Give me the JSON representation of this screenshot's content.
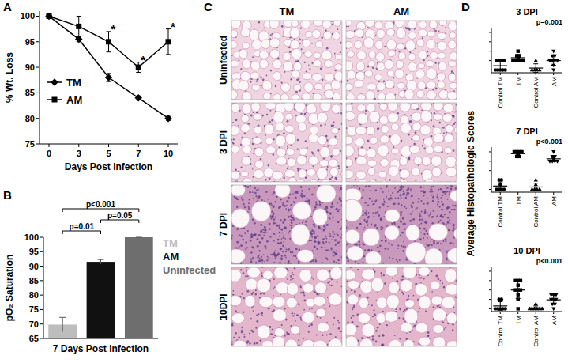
{
  "chart_data": [
    {
      "panel": "A",
      "type": "line",
      "categories": [
        "0",
        "3",
        "5",
        "7",
        "10"
      ],
      "x_label": "Days Post Infection",
      "y_label": "% Wt. Loss",
      "ylim": [
        75,
        101
      ],
      "yticks": [
        75,
        80,
        85,
        90,
        95,
        100
      ],
      "legend": "lower left",
      "series": [
        {
          "name": "TM",
          "marker": "diamond",
          "color": "#000000",
          "values": [
            100,
            95.5,
            88,
            84,
            80
          ],
          "errors": [
            0,
            0.5,
            0.8,
            0.4,
            0.4
          ]
        },
        {
          "name": "AM",
          "marker": "square",
          "color": "#000000",
          "values": [
            100,
            98,
            95,
            90,
            95
          ],
          "errors": [
            0,
            2,
            2,
            1,
            2.5
          ]
        }
      ],
      "annotations": [
        {
          "category": "5",
          "text": "*"
        },
        {
          "category": "7",
          "text": "*"
        },
        {
          "category": "10",
          "text": "*"
        }
      ]
    },
    {
      "panel": "B",
      "type": "bar",
      "categories": [
        "TM",
        "AM",
        "Uninfected"
      ],
      "values": [
        69.8,
        91.5,
        100
      ],
      "errors": [
        2.5,
        0.8,
        0
      ],
      "colors": [
        "#bdbdbd",
        "#111111",
        "#6e6e6e"
      ],
      "x_label": "7 Days Post Infection",
      "y_label": "pO₂ Saturation",
      "ylim": [
        65,
        100
      ],
      "yticks": [
        65,
        70,
        75,
        80,
        85,
        90,
        95,
        100
      ],
      "tick_labels": "y",
      "legend": "right",
      "comparisons": [
        {
          "from": "TM",
          "to": "Uninfected",
          "text": "p<0.001"
        },
        {
          "from": "AM",
          "to": "Uninfected",
          "text": "p=0.05"
        },
        {
          "from": "TM",
          "to": "AM",
          "text": "p=0.01"
        }
      ]
    },
    {
      "panel": "D",
      "type": "scatter",
      "y_label": "Average Histopathologic Scores",
      "categories": [
        "Control TM",
        "TM",
        "Control AM",
        "AM"
      ],
      "ylim": [
        -0.3,
        4.5
      ],
      "yticks": [
        0,
        1,
        2,
        3,
        4
      ],
      "tick_labels": "x",
      "plots": [
        {
          "title": "3 DPI",
          "p_value": "p=0.001",
          "series": [
            {
              "marker": "circle",
              "values": [
                0,
                0,
                0,
                0,
                0,
                1,
                1,
                1,
                1
              ],
              "mean": 0.45,
              "sd": 0.5
            },
            {
              "marker": "square",
              "values": [
                1,
                1,
                1,
                1,
                1,
                1.3,
                1.5,
                1.5,
                2
              ],
              "mean": 1.3,
              "sd": 0.35
            },
            {
              "marker": "triangle",
              "values": [
                0,
                0,
                0,
                0,
                1
              ],
              "mean": 0.2,
              "sd": 0.45
            },
            {
              "marker": "triangle-down",
              "values": [
                0,
                0.5,
                1,
                1,
                1,
                1,
                1.5,
                1.5,
                2
              ],
              "mean": 1.0,
              "sd": 0.5
            }
          ]
        },
        {
          "title": "7 DPI",
          "p_value": "p<0.001",
          "series": [
            {
              "marker": "circle",
              "values": [
                0,
                0,
                0,
                0,
                0.5,
                1,
                1
              ],
              "mean": 0.35,
              "sd": 0.45
            },
            {
              "marker": "square",
              "values": [
                3.5,
                3.5,
                3.7,
                3.8,
                4,
                4,
                4,
                4
              ],
              "mean": 3.8,
              "sd": 0.25
            },
            {
              "marker": "triangle",
              "values": [
                0,
                0,
                0,
                0,
                0.5,
                1
              ],
              "mean": 0.25,
              "sd": 0.4
            },
            {
              "marker": "triangle-down",
              "values": [
                3,
                3,
                3,
                3,
                3.2,
                3.3,
                3.5,
                3.5,
                4
              ],
              "mean": 3.25,
              "sd": 0.3
            }
          ]
        },
        {
          "title": "10 DPI",
          "p_value": "p<0.001",
          "series": [
            {
              "marker": "circle",
              "values": [
                0,
                0,
                0,
                0,
                0,
                1,
                1
              ],
              "mean": 0.3,
              "sd": 0.45
            },
            {
              "marker": "square",
              "values": [
                0,
                1,
                1.5,
                2,
                2,
                2,
                2.5,
                3,
                3,
                3
              ],
              "mean": 2.0,
              "sd": 0.9
            },
            {
              "marker": "triangle",
              "values": [
                0,
                0,
                0,
                0,
                0,
                0,
                0.5
              ],
              "mean": 0.1,
              "sd": 0.2
            },
            {
              "marker": "triangle-down",
              "values": [
                0,
                0.5,
                0.5,
                1,
                1,
                1,
                1.5,
                1.5,
                1.5
              ],
              "mean": 0.95,
              "sd": 0.5
            }
          ]
        }
      ]
    }
  ],
  "micrographs": {
    "panel": "C",
    "columns": [
      "TM",
      "AM"
    ],
    "rows": [
      "Uninfected",
      "3 DPI",
      "7 DPI",
      "10DPI"
    ]
  }
}
